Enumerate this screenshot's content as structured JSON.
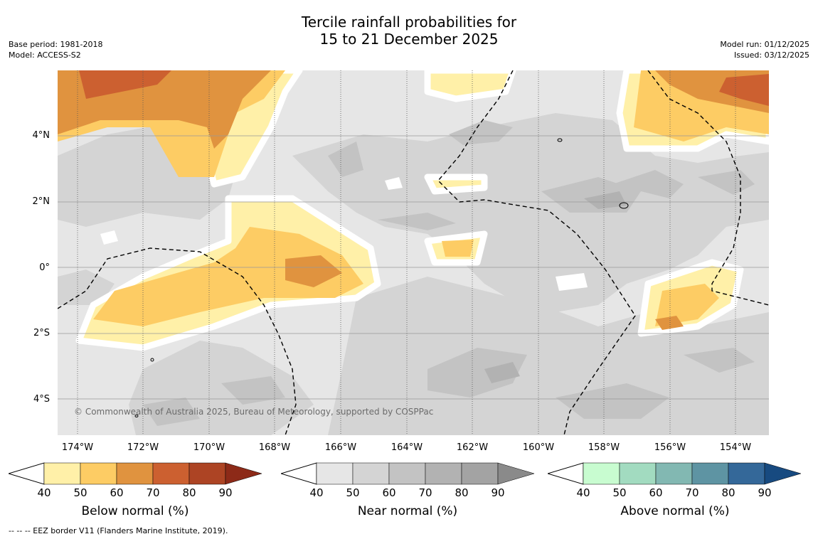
{
  "title": {
    "line1": "Tercile rainfall probabilities for",
    "line2": "15 to 21 December 2025"
  },
  "meta_left": {
    "base_period": "Base period: 1981-2018",
    "model": "Model: ACCESS-S2"
  },
  "meta_right": {
    "model_run": "Model run: 01/12/2025",
    "issued": "Issued: 03/12/2025"
  },
  "map": {
    "lat_labels": [
      "4°N",
      "2°N",
      "0°",
      "2°S",
      "4°S"
    ],
    "lon_labels": [
      "174°W",
      "172°W",
      "170°W",
      "168°W",
      "166°W",
      "164°W",
      "162°W",
      "160°W",
      "158°W",
      "156°W",
      "154°W"
    ],
    "copyright": "© Commonwealth of Australia 2025, Bureau of Meteorology, supported by COSPPac"
  },
  "colorbars": [
    {
      "title": "Below normal (%)",
      "ticks": [
        "40",
        "50",
        "60",
        "70",
        "80",
        "90"
      ],
      "colors": [
        "#fff0a8",
        "#fdcc64",
        "#e0933f",
        "#cc6030",
        "#ad4424",
        "#8d2a18"
      ]
    },
    {
      "title": "Near normal (%)",
      "ticks": [
        "40",
        "50",
        "60",
        "70",
        "80",
        "90"
      ],
      "colors": [
        "#e6e6e6",
        "#d4d4d4",
        "#c3c3c3",
        "#b2b2b2",
        "#a3a3a3",
        "#8a8a8a"
      ]
    },
    {
      "title": "Above normal (%)",
      "ticks": [
        "40",
        "50",
        "60",
        "70",
        "80",
        "90"
      ],
      "colors": [
        "#c8fcd0",
        "#a2dbc0",
        "#82b8b2",
        "#5e94a3",
        "#346899",
        "#174a80"
      ]
    }
  ],
  "footnote": "-- -- -- EEZ border V11 (Flanders Marine Institute, 2019)."
}
